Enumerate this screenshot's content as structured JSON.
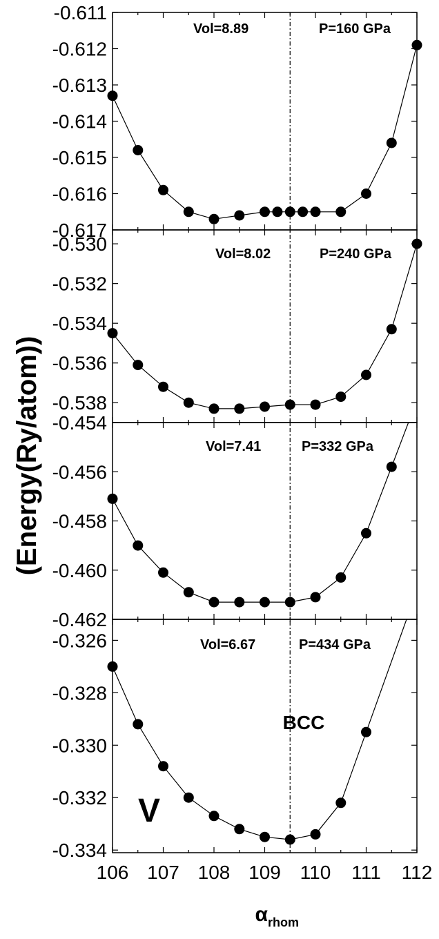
{
  "chart_data": {
    "type": "scatter",
    "ylabel": "(Energy(Ry/atom))",
    "xlabel_main": "α",
    "xlabel_sub": "rhom",
    "xlim": [
      106,
      112
    ],
    "xticks": [
      "106",
      "107",
      "108",
      "109",
      "110",
      "111",
      "112"
    ],
    "bcc_line_x": 109.5,
    "bcc_label": "BCC",
    "element_label": "V",
    "panels": [
      {
        "vol_label": "Vol=8.89",
        "pressure_label": "P=160 GPa",
        "ylim": [
          -0.617,
          -0.611
        ],
        "yticks": [
          "-0.611",
          "-0.612",
          "-0.613",
          "-0.614",
          "-0.615",
          "-0.616",
          "-0.617"
        ],
        "x": [
          106,
          106.5,
          107,
          107.5,
          108,
          108.5,
          109,
          109.25,
          109.5,
          109.75,
          110,
          110.5,
          111,
          111.5,
          112
        ],
        "y": [
          -0.6133,
          -0.6148,
          -0.6159,
          -0.6165,
          -0.6167,
          -0.6166,
          -0.6165,
          -0.6165,
          -0.6165,
          -0.6165,
          -0.6165,
          -0.6165,
          -0.616,
          -0.6146,
          -0.6119
        ]
      },
      {
        "vol_label": "Vol=8.02",
        "pressure_label": "P=240 GPa",
        "ylim": [
          -0.539,
          -0.5293
        ],
        "yticks": [
          "-0.530",
          "-0.532",
          "-0.534",
          "-0.536",
          "-0.538"
        ],
        "x": [
          106,
          106.5,
          107,
          107.5,
          108,
          108.5,
          109,
          109.5,
          110,
          110.5,
          111,
          111.5,
          112
        ],
        "y": [
          -0.5345,
          -0.5361,
          -0.5372,
          -0.538,
          -0.5383,
          -0.5383,
          -0.5382,
          -0.5381,
          -0.5381,
          -0.5377,
          -0.5366,
          -0.5343,
          -0.53
        ]
      },
      {
        "vol_label": "Vol=7.41",
        "pressure_label": "P=332 GPa",
        "ylim": [
          -0.462,
          -0.454
        ],
        "yticks": [
          "-0.454",
          "-0.456",
          "-0.458",
          "-0.460",
          "-0.462"
        ],
        "x": [
          106,
          106.5,
          107,
          107.5,
          108,
          108.5,
          109,
          109.5,
          110,
          110.5,
          111,
          111.5
        ],
        "y": [
          -0.4571,
          -0.459,
          -0.4601,
          -0.4609,
          -0.4613,
          -0.4613,
          -0.4613,
          -0.4613,
          -0.4611,
          -0.4603,
          -0.4585,
          -0.4558
        ]
      },
      {
        "vol_label": "Vol=6.67",
        "pressure_label": "P=434 GPa",
        "ylim": [
          -0.3341,
          -0.3252
        ],
        "yticks": [
          "-0.326",
          "-0.328",
          "-0.330",
          "-0.332",
          "-0.334"
        ],
        "x": [
          106,
          106.5,
          107,
          107.5,
          108,
          108.5,
          109,
          109.5,
          110,
          110.5,
          111
        ],
        "y": [
          -0.327,
          -0.3292,
          -0.3308,
          -0.332,
          -0.3327,
          -0.3332,
          -0.3335,
          -0.3336,
          -0.3334,
          -0.3322,
          -0.3295
        ]
      }
    ]
  }
}
